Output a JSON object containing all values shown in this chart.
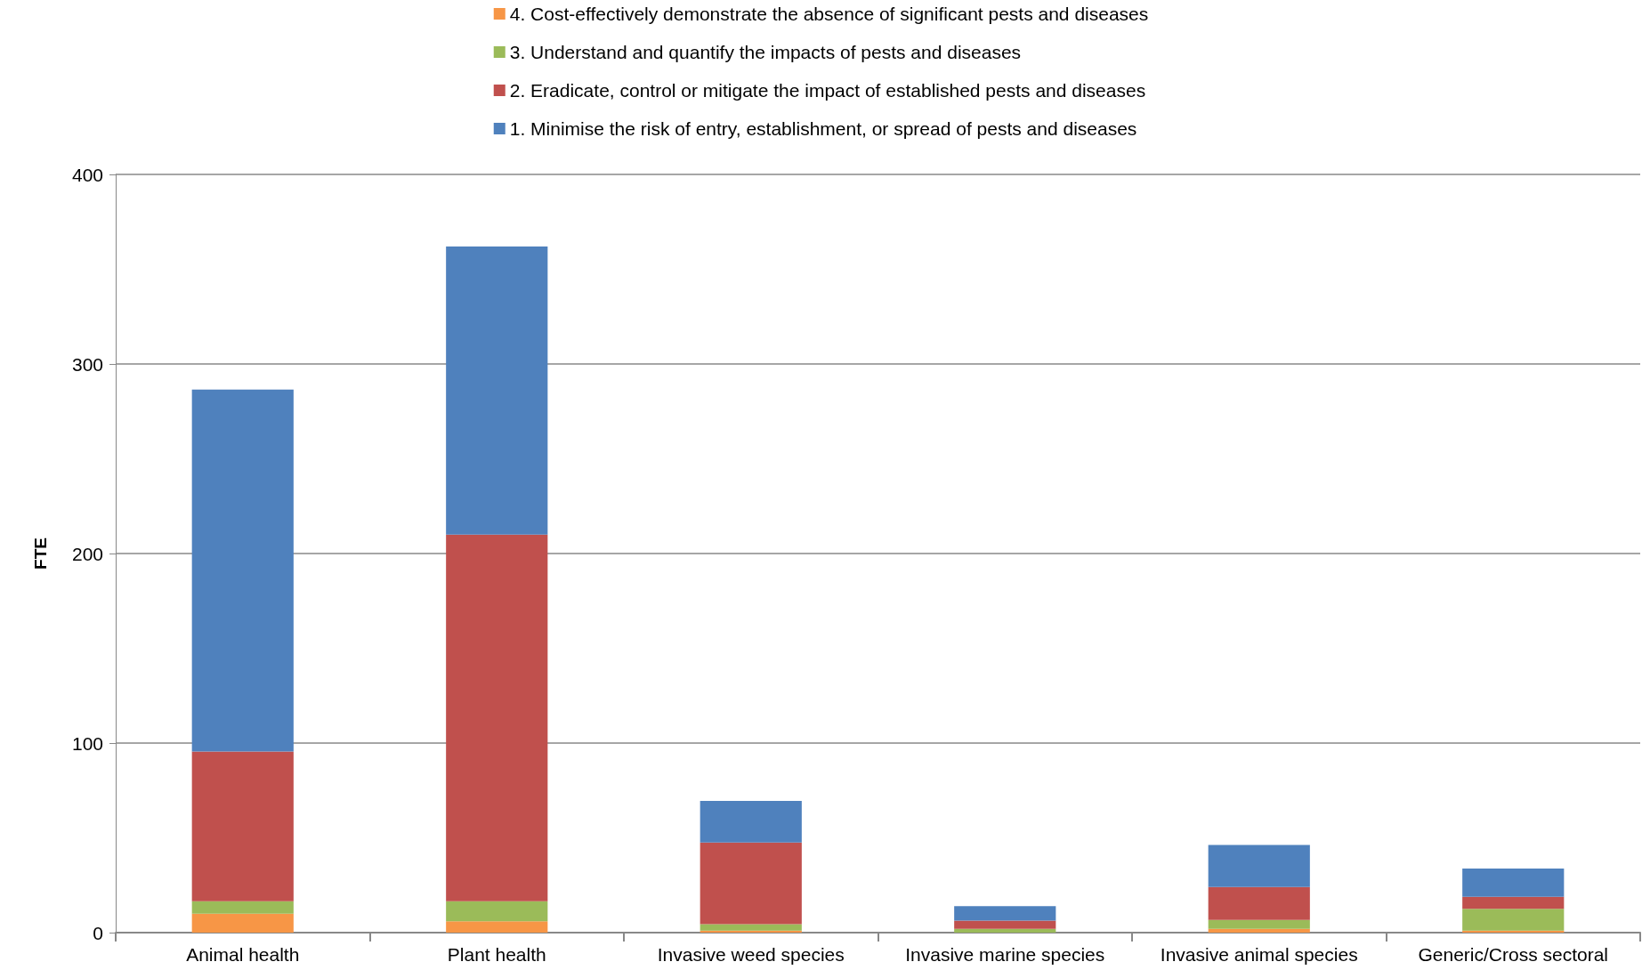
{
  "chart_data": {
    "type": "bar",
    "stacked": true,
    "ylabel": "FTE",
    "categories": [
      "Animal health",
      "Plant health",
      "Invasive weed species",
      "Invasive marine species",
      "Invasive animal species",
      "Generic/Cross sectoral"
    ],
    "series": [
      {
        "name": "4. Cost-effectively demonstrate the absence of significant pests and diseases",
        "color": "#f79646",
        "values": [
          10,
          6,
          1,
          0,
          2,
          1
        ]
      },
      {
        "name": "3. Understand and quantify the impacts of pests and diseases",
        "color": "#9bbb59",
        "values": [
          6.5,
          10.5,
          3.5,
          2,
          4.7,
          11.6
        ]
      },
      {
        "name": "2. Eradicate, control or mitigate the impact of established pests and diseases",
        "color": "#c0504d",
        "values": [
          79,
          193.5,
          43,
          4.3,
          17.4,
          6.3
        ]
      },
      {
        "name": "1. Minimise the risk of entry, establishment, or spread of pests and diseases",
        "color": "#4f81bd",
        "values": [
          191,
          152,
          22,
          7.7,
          22.2,
          14.9
        ]
      }
    ],
    "ylim": [
      0,
      400
    ],
    "yticks": [
      0,
      100,
      200,
      300,
      400
    ],
    "grid": "y",
    "legend": "top"
  }
}
